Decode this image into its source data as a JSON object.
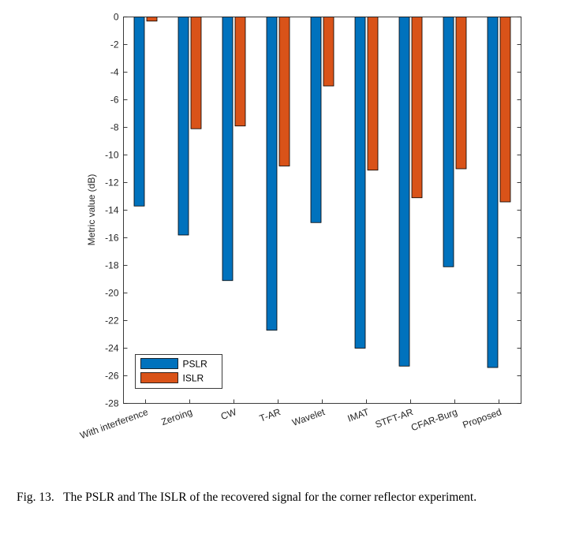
{
  "chart_data": {
    "type": "bar",
    "title": "",
    "xlabel": "",
    "ylabel": "Metric value (dB)",
    "ylim": [
      -28,
      0
    ],
    "yticks": [
      0,
      -2,
      -4,
      -6,
      -8,
      -10,
      -12,
      -14,
      -16,
      -18,
      -20,
      -22,
      -24,
      -26,
      -28
    ],
    "categories": [
      "With interference",
      "Zeroing",
      "CW",
      "T-AR",
      "Wavelet",
      "IMAT",
      "STFT-AR",
      "CFAR-Burg",
      "Proposed"
    ],
    "series": [
      {
        "name": "PSLR",
        "color": "#0072BD",
        "values": [
          -13.7,
          -15.8,
          -19.1,
          -22.7,
          -14.9,
          -24.0,
          -25.3,
          -18.1,
          -25.4
        ]
      },
      {
        "name": "ISLR",
        "color": "#D95319",
        "values": [
          -0.3,
          -8.1,
          -7.9,
          -10.8,
          -5.0,
          -11.1,
          -13.1,
          -11.0,
          -13.4
        ]
      }
    ],
    "legend": {
      "position": "bottom-left",
      "entries": [
        "PSLR",
        "ISLR"
      ]
    },
    "grid": false
  },
  "caption": {
    "label": "Fig. 13.",
    "text": "The PSLR and The ISLR of the recovered signal for the corner reflector experiment."
  }
}
